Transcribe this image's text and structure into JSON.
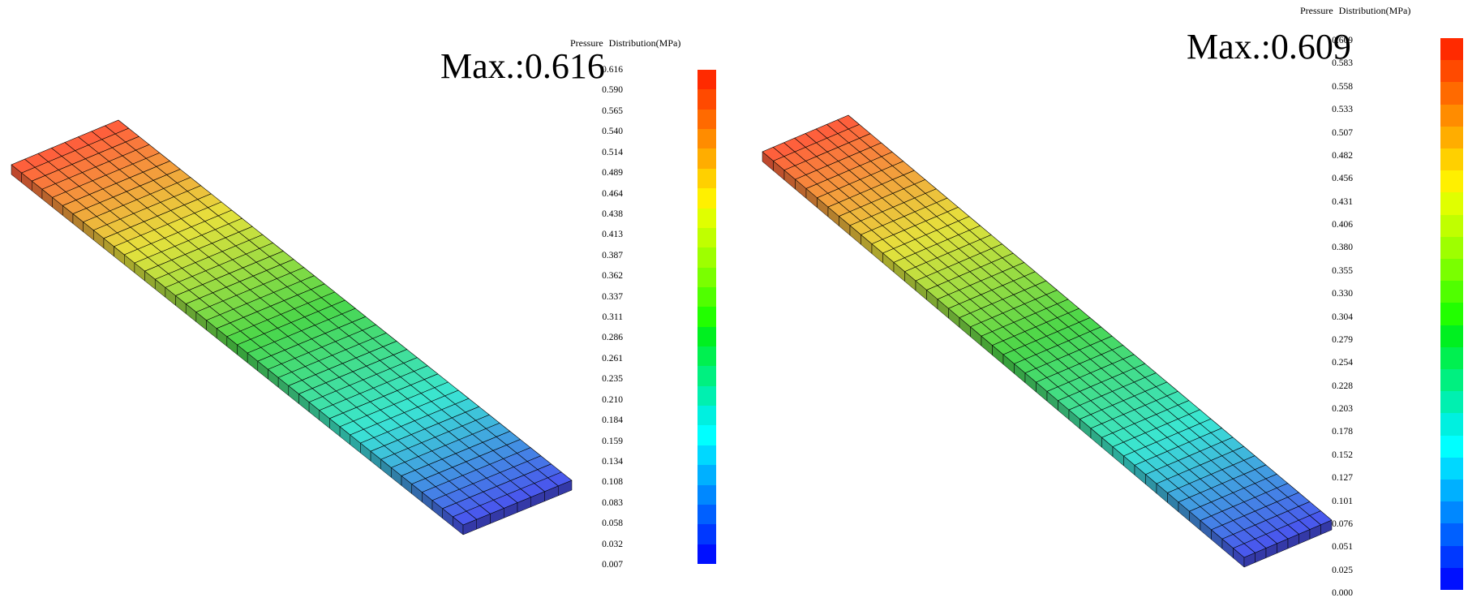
{
  "panels": [
    {
      "id": "left",
      "max_label": "Max.:0.616",
      "legend_title": "Pressure  Distribution(MPa)",
      "ticks": [
        "0.616",
        "0.590",
        "0.565",
        "0.540",
        "0.514",
        "0.489",
        "0.464",
        "0.438",
        "0.413",
        "0.387",
        "0.362",
        "0.337",
        "0.311",
        "0.286",
        "0.261",
        "0.235",
        "0.210",
        "0.184",
        "0.159",
        "0.134",
        "0.108",
        "0.083",
        "0.058",
        "0.032",
        "0.007"
      ],
      "plate": {
        "columns": 8,
        "rows": 44
      }
    },
    {
      "id": "right",
      "max_label": "Max.:0.609",
      "legend_title": "Pressure  Distribution(MPa)",
      "ticks": [
        "0.609",
        "0.583",
        "0.558",
        "0.533",
        "0.507",
        "0.482",
        "0.456",
        "0.431",
        "0.406",
        "0.380",
        "0.355",
        "0.330",
        "0.304",
        "0.279",
        "0.254",
        "0.228",
        "0.203",
        "0.178",
        "0.152",
        "0.127",
        "0.101",
        "0.076",
        "0.051",
        "0.025",
        "0.000"
      ],
      "plate": {
        "columns": 8,
        "rows": 44
      }
    }
  ],
  "colormap": [
    "#ff2a00",
    "#ff4a00",
    "#ff6a00",
    "#ff8c00",
    "#ffad00",
    "#ffd000",
    "#fff000",
    "#e0ff00",
    "#c0ff00",
    "#9eff00",
    "#7aff00",
    "#50ff00",
    "#22ff00",
    "#00f020",
    "#00f050",
    "#00f080",
    "#00f0b0",
    "#00f0e0",
    "#00ffff",
    "#00d8ff",
    "#00b0ff",
    "#0088ff",
    "#0060ff",
    "#0038ff",
    "#0010ff"
  ],
  "plate_colors": {
    "high": "#ff5a3c",
    "mid_high": "#e6e23c",
    "mid": "#4ad64a",
    "mid_low": "#3ae6d4",
    "low": "#4a52ee"
  }
}
